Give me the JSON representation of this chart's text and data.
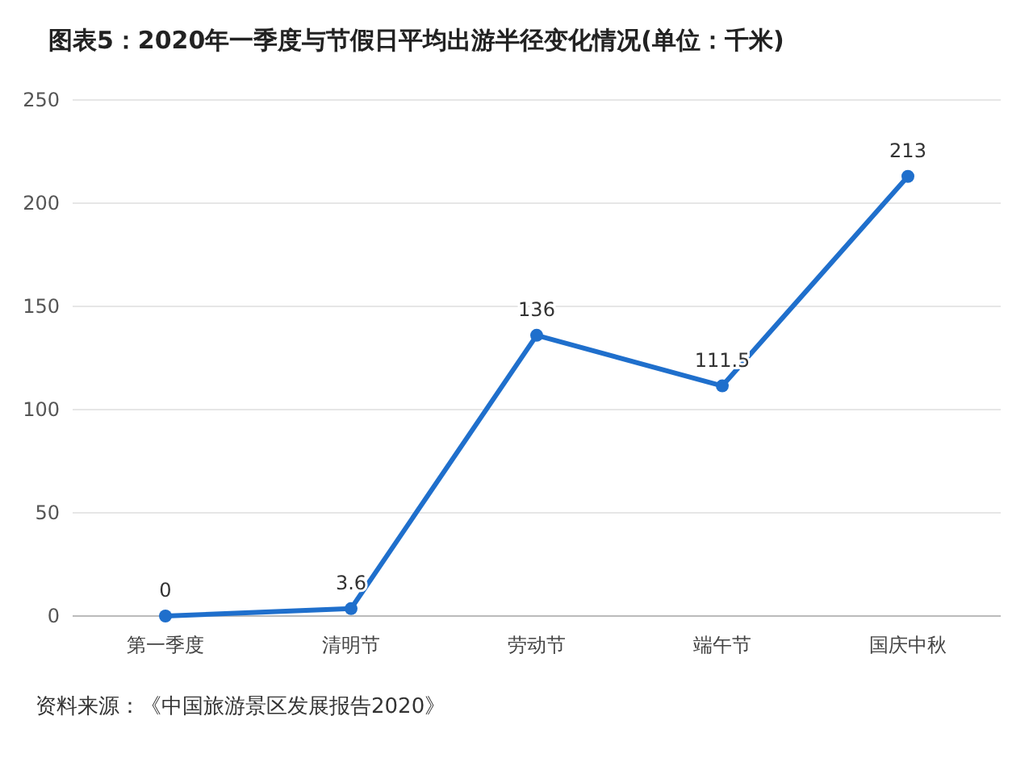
{
  "chart_data": {
    "type": "line",
    "title": "图表5：2020年一季度与节假日平均出游半径变化情况(单位：千米)",
    "categories": [
      "第一季度",
      "清明节",
      "劳动节",
      "端午节",
      "国庆中秋"
    ],
    "series": [
      {
        "color": "#1f6fcc",
        "values": [
          0,
          3.6,
          136,
          111.5,
          213
        ]
      }
    ],
    "ylim": [
      0,
      250
    ],
    "yticks": [
      0,
      50,
      100,
      150,
      200,
      250
    ],
    "grid": "y",
    "marker": "circle",
    "data_labels": true,
    "annotations": [
      "资料来源：《中国旅游景区发展报告2020》"
    ]
  }
}
